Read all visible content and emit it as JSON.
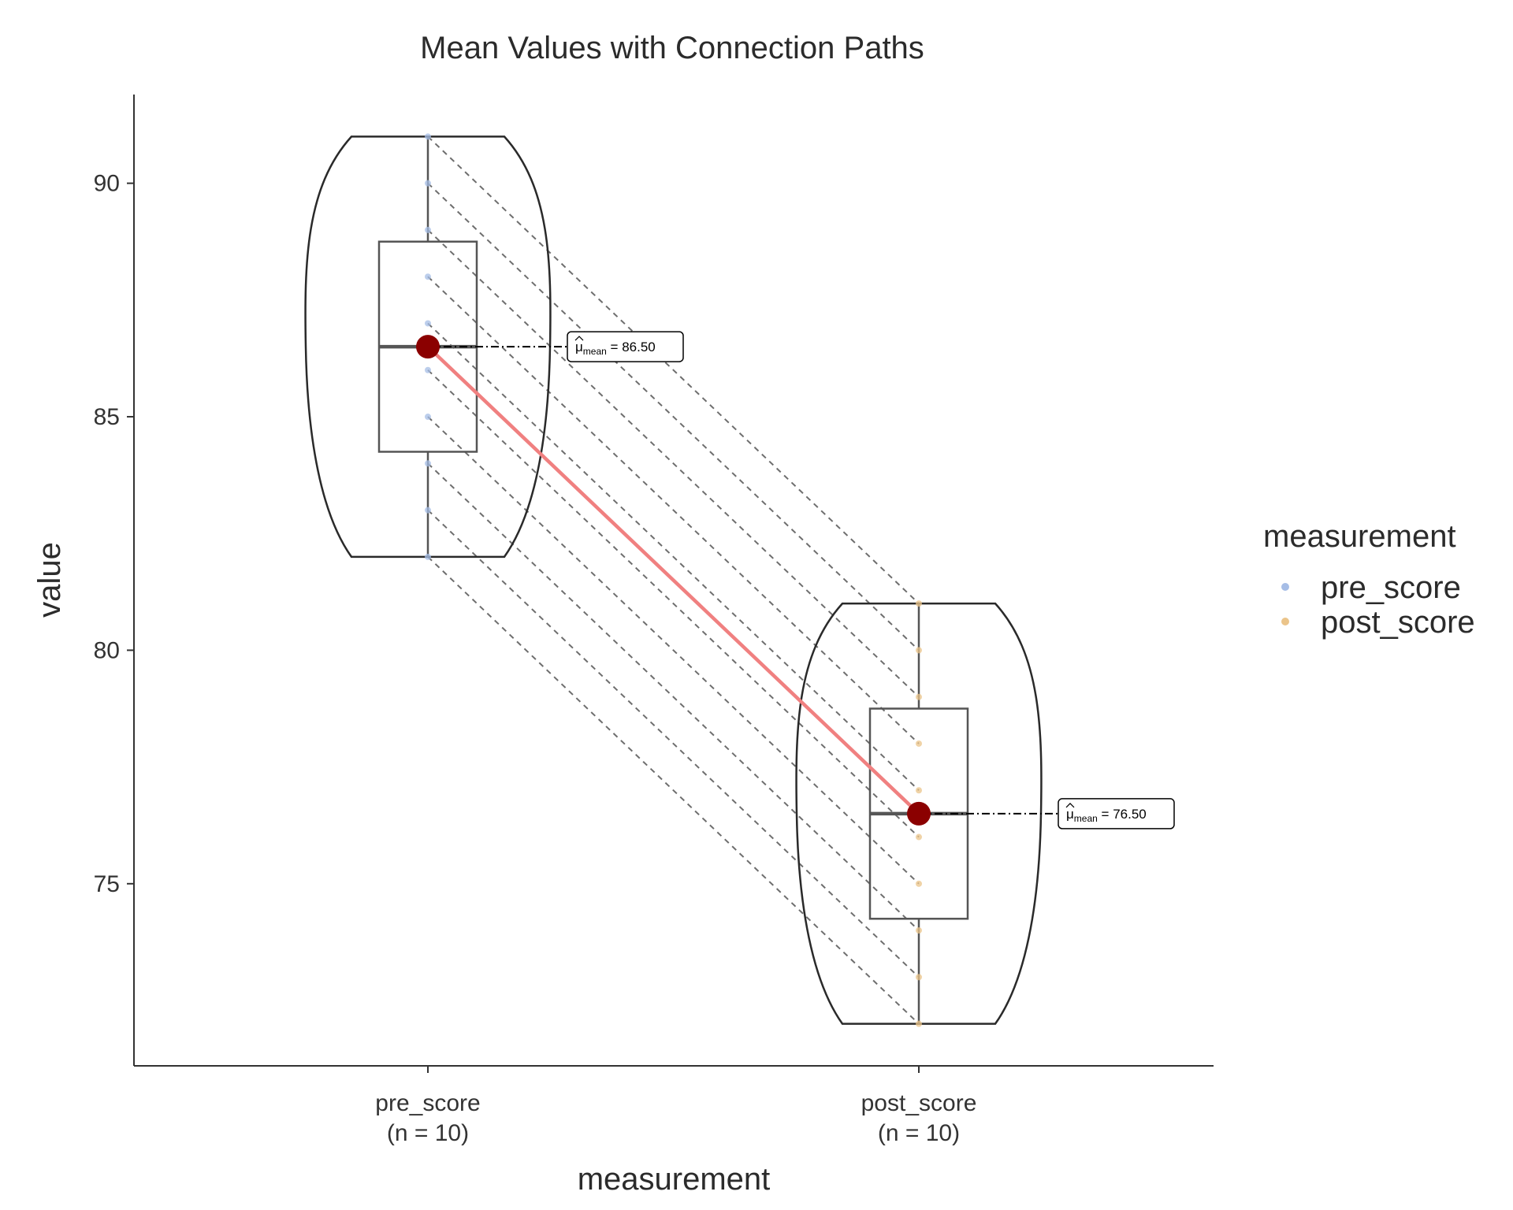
{
  "chart_data": {
    "type": "violin-box-paired",
    "title": "Mean Values with Connection Paths",
    "xlabel": "measurement",
    "ylabel": "value",
    "ylim": [
      71.1,
      91.9
    ],
    "y_ticks": [
      75,
      80,
      85,
      90
    ],
    "categories": [
      "pre_score",
      "post_score"
    ],
    "category_n_labels": [
      "(n = 10)",
      "(n = 10)"
    ],
    "legend_title": "measurement",
    "legend_position": "right",
    "grid": false,
    "series": [
      {
        "name": "pre_score",
        "color": "#A6BDE6",
        "values": [
          91,
          90,
          89,
          88,
          87,
          86,
          85,
          84,
          83,
          82
        ],
        "mean": 86.5,
        "median": 86.5,
        "q1": 84.25,
        "q3": 88.75,
        "min": 82,
        "max": 91,
        "mean_label": "= 86.50"
      },
      {
        "name": "post_score",
        "color": "#EBC48A",
        "values": [
          81,
          80,
          79,
          78,
          77,
          76,
          75,
          74,
          73,
          72
        ],
        "mean": 76.5,
        "median": 76.5,
        "q1": 74.25,
        "q3": 78.75,
        "min": 72,
        "max": 81,
        "mean_label": "= 76.50"
      }
    ],
    "mean_symbol": "μ",
    "mean_subscript": "mean",
    "mean_color": "#8B0000",
    "mean_line_color": "#F08080",
    "paired_line_color": "#6e6e6e"
  }
}
